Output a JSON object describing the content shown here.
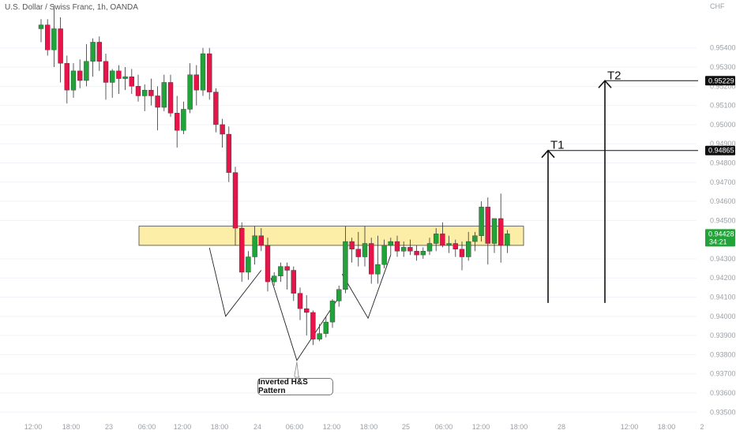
{
  "header": {
    "title": "U.S. Dollar / Swiss Franc, 1h, OANDA"
  },
  "currency_label": "CHF",
  "annotations": {
    "pattern_label": "Inverted H&S Pattern",
    "target1_label": "T1",
    "target2_label": "T2",
    "target1_price": "0.94865",
    "target2_price": "0.95229",
    "current_price": "0.94428",
    "countdown": "34:21"
  },
  "colors": {
    "up": "#22a33a",
    "down": "#e5154a",
    "zone_fill": "#fbeb96",
    "price_tag": "#22a33a",
    "target_tag": "#111111"
  },
  "chart_data": {
    "type": "candlestick",
    "title": "U.S. Dollar / Swiss Franc, 1h, OANDA",
    "y_unit": "CHF",
    "ylim": [
      0.9346,
      0.9565
    ],
    "y_ticks": [
      "0.95400",
      "0.95300",
      "0.95200",
      "0.95100",
      "0.95000",
      "0.94900",
      "0.94800",
      "0.94700",
      "0.94600",
      "0.94500",
      "0.94300",
      "0.94200",
      "0.94100",
      "0.94000",
      "0.93900",
      "0.93800",
      "0.93700",
      "0.93600",
      "0.93500"
    ],
    "x_ticks": [
      "12:00",
      "18:00",
      "23",
      "06:00",
      "12:00",
      "18:00",
      "24",
      "06:00",
      "12:00",
      "18:00",
      "25",
      "06:00",
      "12:00",
      "18:00",
      "28",
      "12:00",
      "18:00",
      "2"
    ],
    "resistance_zone": [
      0.9437,
      0.9447
    ],
    "ohlc": [
      [
        0.955,
        0.9555,
        0.9543,
        0.9552
      ],
      [
        0.9552,
        0.9555,
        0.9536,
        0.9539
      ],
      [
        0.9539,
        0.9562,
        0.953,
        0.955
      ],
      [
        0.955,
        0.9556,
        0.9522,
        0.9532
      ],
      [
        0.9532,
        0.9536,
        0.9511,
        0.9518
      ],
      [
        0.9518,
        0.9532,
        0.9514,
        0.9528
      ],
      [
        0.9528,
        0.9534,
        0.9519,
        0.9523
      ],
      [
        0.9523,
        0.9542,
        0.952,
        0.9533
      ],
      [
        0.9533,
        0.9545,
        0.9525,
        0.9543
      ],
      [
        0.9543,
        0.9546,
        0.9528,
        0.9533
      ],
      [
        0.9533,
        0.9537,
        0.9513,
        0.9522
      ],
      [
        0.9522,
        0.9529,
        0.9514,
        0.9528
      ],
      [
        0.9528,
        0.9531,
        0.9516,
        0.9524
      ],
      [
        0.9524,
        0.953,
        0.9518,
        0.9525
      ],
      [
        0.9525,
        0.9529,
        0.9516,
        0.952
      ],
      [
        0.952,
        0.9526,
        0.9512,
        0.9515
      ],
      [
        0.9515,
        0.9521,
        0.9507,
        0.9518
      ],
      [
        0.9518,
        0.9524,
        0.951,
        0.9515
      ],
      [
        0.9515,
        0.952,
        0.9497,
        0.9509
      ],
      [
        0.9509,
        0.9526,
        0.9507,
        0.9522
      ],
      [
        0.9522,
        0.9526,
        0.9504,
        0.9506
      ],
      [
        0.9506,
        0.9515,
        0.9488,
        0.9497
      ],
      [
        0.9497,
        0.9512,
        0.9495,
        0.9508
      ],
      [
        0.9508,
        0.9532,
        0.9506,
        0.9526
      ],
      [
        0.9526,
        0.9531,
        0.951,
        0.9518
      ],
      [
        0.9518,
        0.954,
        0.9515,
        0.9537
      ],
      [
        0.9537,
        0.954,
        0.9513,
        0.9517
      ],
      [
        0.9517,
        0.9519,
        0.9496,
        0.95
      ],
      [
        0.95,
        0.9503,
        0.9488,
        0.9495
      ],
      [
        0.9495,
        0.9499,
        0.947,
        0.9475
      ],
      [
        0.9475,
        0.9478,
        0.9437,
        0.9446
      ],
      [
        0.9446,
        0.9449,
        0.9418,
        0.9423
      ],
      [
        0.9423,
        0.9434,
        0.9419,
        0.9431
      ],
      [
        0.9431,
        0.9447,
        0.9427,
        0.9442
      ],
      [
        0.9442,
        0.9446,
        0.9434,
        0.9437
      ],
      [
        0.9437,
        0.9441,
        0.9413,
        0.9418
      ],
      [
        0.9418,
        0.9423,
        0.9416,
        0.9421
      ],
      [
        0.9421,
        0.9428,
        0.9418,
        0.9426
      ],
      [
        0.9426,
        0.9428,
        0.9414,
        0.9424
      ],
      [
        0.9424,
        0.9426,
        0.9408,
        0.9412
      ],
      [
        0.9412,
        0.9415,
        0.9398,
        0.9404
      ],
      [
        0.9404,
        0.9411,
        0.939,
        0.9402
      ],
      [
        0.9402,
        0.9403,
        0.9385,
        0.9388
      ],
      [
        0.9388,
        0.9396,
        0.9387,
        0.9391
      ],
      [
        0.9391,
        0.94,
        0.9389,
        0.9397
      ],
      [
        0.9397,
        0.9409,
        0.9394,
        0.9408
      ],
      [
        0.9408,
        0.9416,
        0.9405,
        0.9414
      ],
      [
        0.9414,
        0.9447,
        0.9412,
        0.9439
      ],
      [
        0.9439,
        0.9441,
        0.9428,
        0.9435
      ],
      [
        0.9435,
        0.9444,
        0.9426,
        0.9431
      ],
      [
        0.9431,
        0.9447,
        0.9426,
        0.9438
      ],
      [
        0.9438,
        0.9441,
        0.9417,
        0.9422
      ],
      [
        0.9422,
        0.9442,
        0.9417,
        0.9427
      ],
      [
        0.9427,
        0.944,
        0.9425,
        0.9437
      ],
      [
        0.9437,
        0.9441,
        0.9432,
        0.9439
      ],
      [
        0.9439,
        0.9442,
        0.9431,
        0.9434
      ],
      [
        0.9434,
        0.9439,
        0.9431,
        0.9436
      ],
      [
        0.9436,
        0.944,
        0.9432,
        0.9434
      ],
      [
        0.9434,
        0.9437,
        0.9429,
        0.9432
      ],
      [
        0.9432,
        0.9436,
        0.943,
        0.9434
      ],
      [
        0.9434,
        0.9441,
        0.9432,
        0.9438
      ],
      [
        0.9438,
        0.9446,
        0.9434,
        0.9443
      ],
      [
        0.9443,
        0.9449,
        0.9436,
        0.9437
      ],
      [
        0.9437,
        0.9442,
        0.9433,
        0.9438
      ],
      [
        0.9438,
        0.944,
        0.9431,
        0.9435
      ],
      [
        0.9435,
        0.9439,
        0.9424,
        0.9431
      ],
      [
        0.9431,
        0.9444,
        0.9429,
        0.9439
      ],
      [
        0.9439,
        0.9444,
        0.9434,
        0.9442
      ],
      [
        0.9442,
        0.946,
        0.9439,
        0.9457
      ],
      [
        0.9457,
        0.9462,
        0.9427,
        0.9438
      ],
      [
        0.9438,
        0.945,
        0.9433,
        0.9451
      ],
      [
        0.9451,
        0.9464,
        0.9428,
        0.9437
      ],
      [
        0.9437,
        0.9445,
        0.9433,
        0.9443
      ]
    ],
    "pattern": "inverted head and shoulders",
    "targets": [
      0.94865,
      0.95229
    ]
  }
}
